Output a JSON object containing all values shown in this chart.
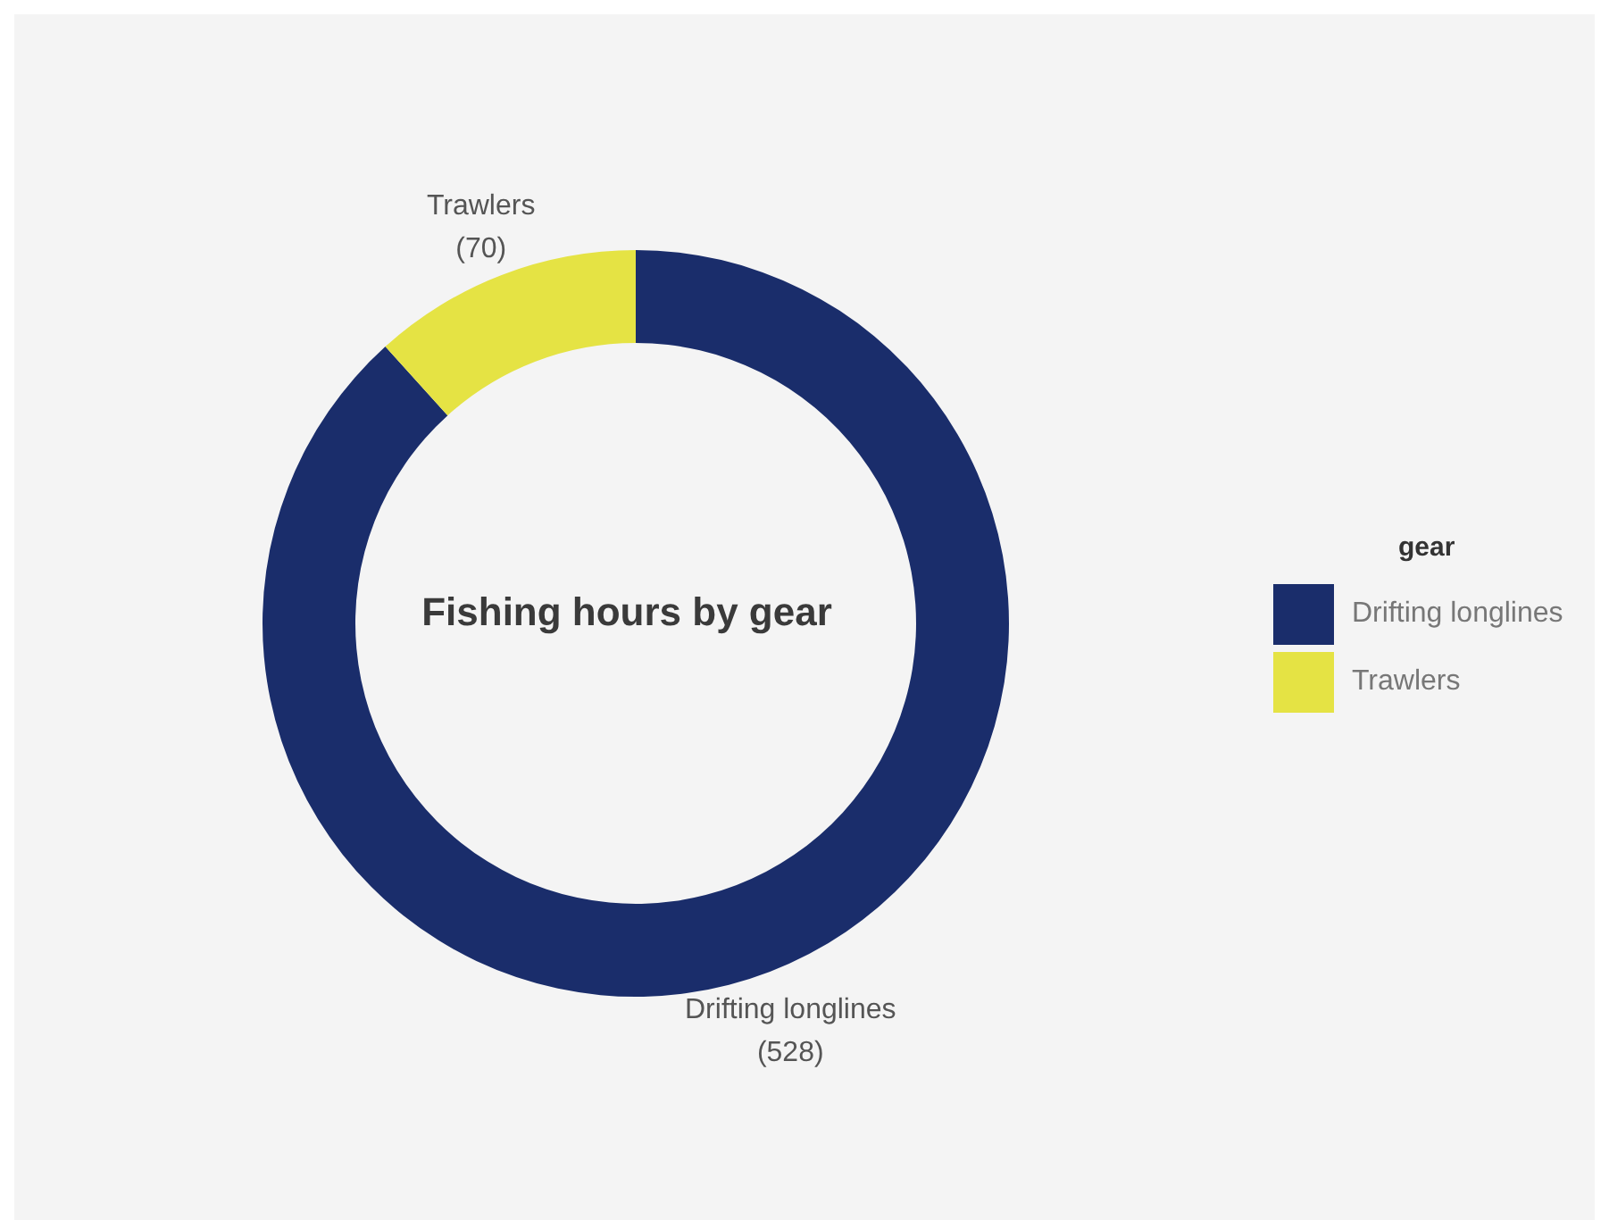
{
  "chart_data": {
    "type": "donut",
    "title": "Fishing hours by gear",
    "legend_title": "gear",
    "legend": "right",
    "categories": [
      "Drifting longlines",
      "Trawlers"
    ],
    "values": [
      528,
      70
    ],
    "value_labels": [
      "(528)",
      "(70)"
    ],
    "colors": [
      "#1a2d6b",
      "#e5e344"
    ]
  }
}
